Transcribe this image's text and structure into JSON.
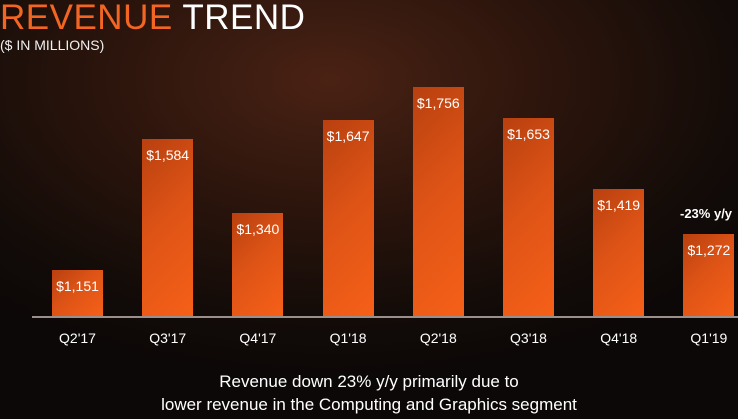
{
  "header": {
    "title_accent": "REVENUE",
    "title_rest": "TREND",
    "subtitle": "($ IN MILLIONS)"
  },
  "annotation": "-23% y/y",
  "caption": {
    "line1": "Revenue down 23% y/y primarily due to",
    "line2": "lower revenue in the Computing and Graphics segment"
  },
  "colors": {
    "accent": "#f26522",
    "bar": "#f05a18",
    "axis": "#9a8f8a"
  },
  "chart_data": {
    "type": "bar",
    "title": "REVENUE TREND",
    "subtitle": "($ IN MILLIONS)",
    "xlabel": "",
    "ylabel": "",
    "categories": [
      "Q2'17",
      "Q3'17",
      "Q4'17",
      "Q1'18",
      "Q2'18",
      "Q3'18",
      "Q4'18",
      "Q1'19"
    ],
    "values": [
      1151,
      1584,
      1340,
      1647,
      1756,
      1653,
      1419,
      1272
    ],
    "value_labels": [
      "$1,151",
      "$1,584",
      "$1,340",
      "$1,647",
      "$1,756",
      "$1,653",
      "$1,419",
      "$1,272"
    ],
    "annotations": [
      {
        "category": "Q1'19",
        "text": "-23% y/y"
      }
    ],
    "ylim": [
      1000,
      1800
    ],
    "grid": false,
    "legend": null
  }
}
